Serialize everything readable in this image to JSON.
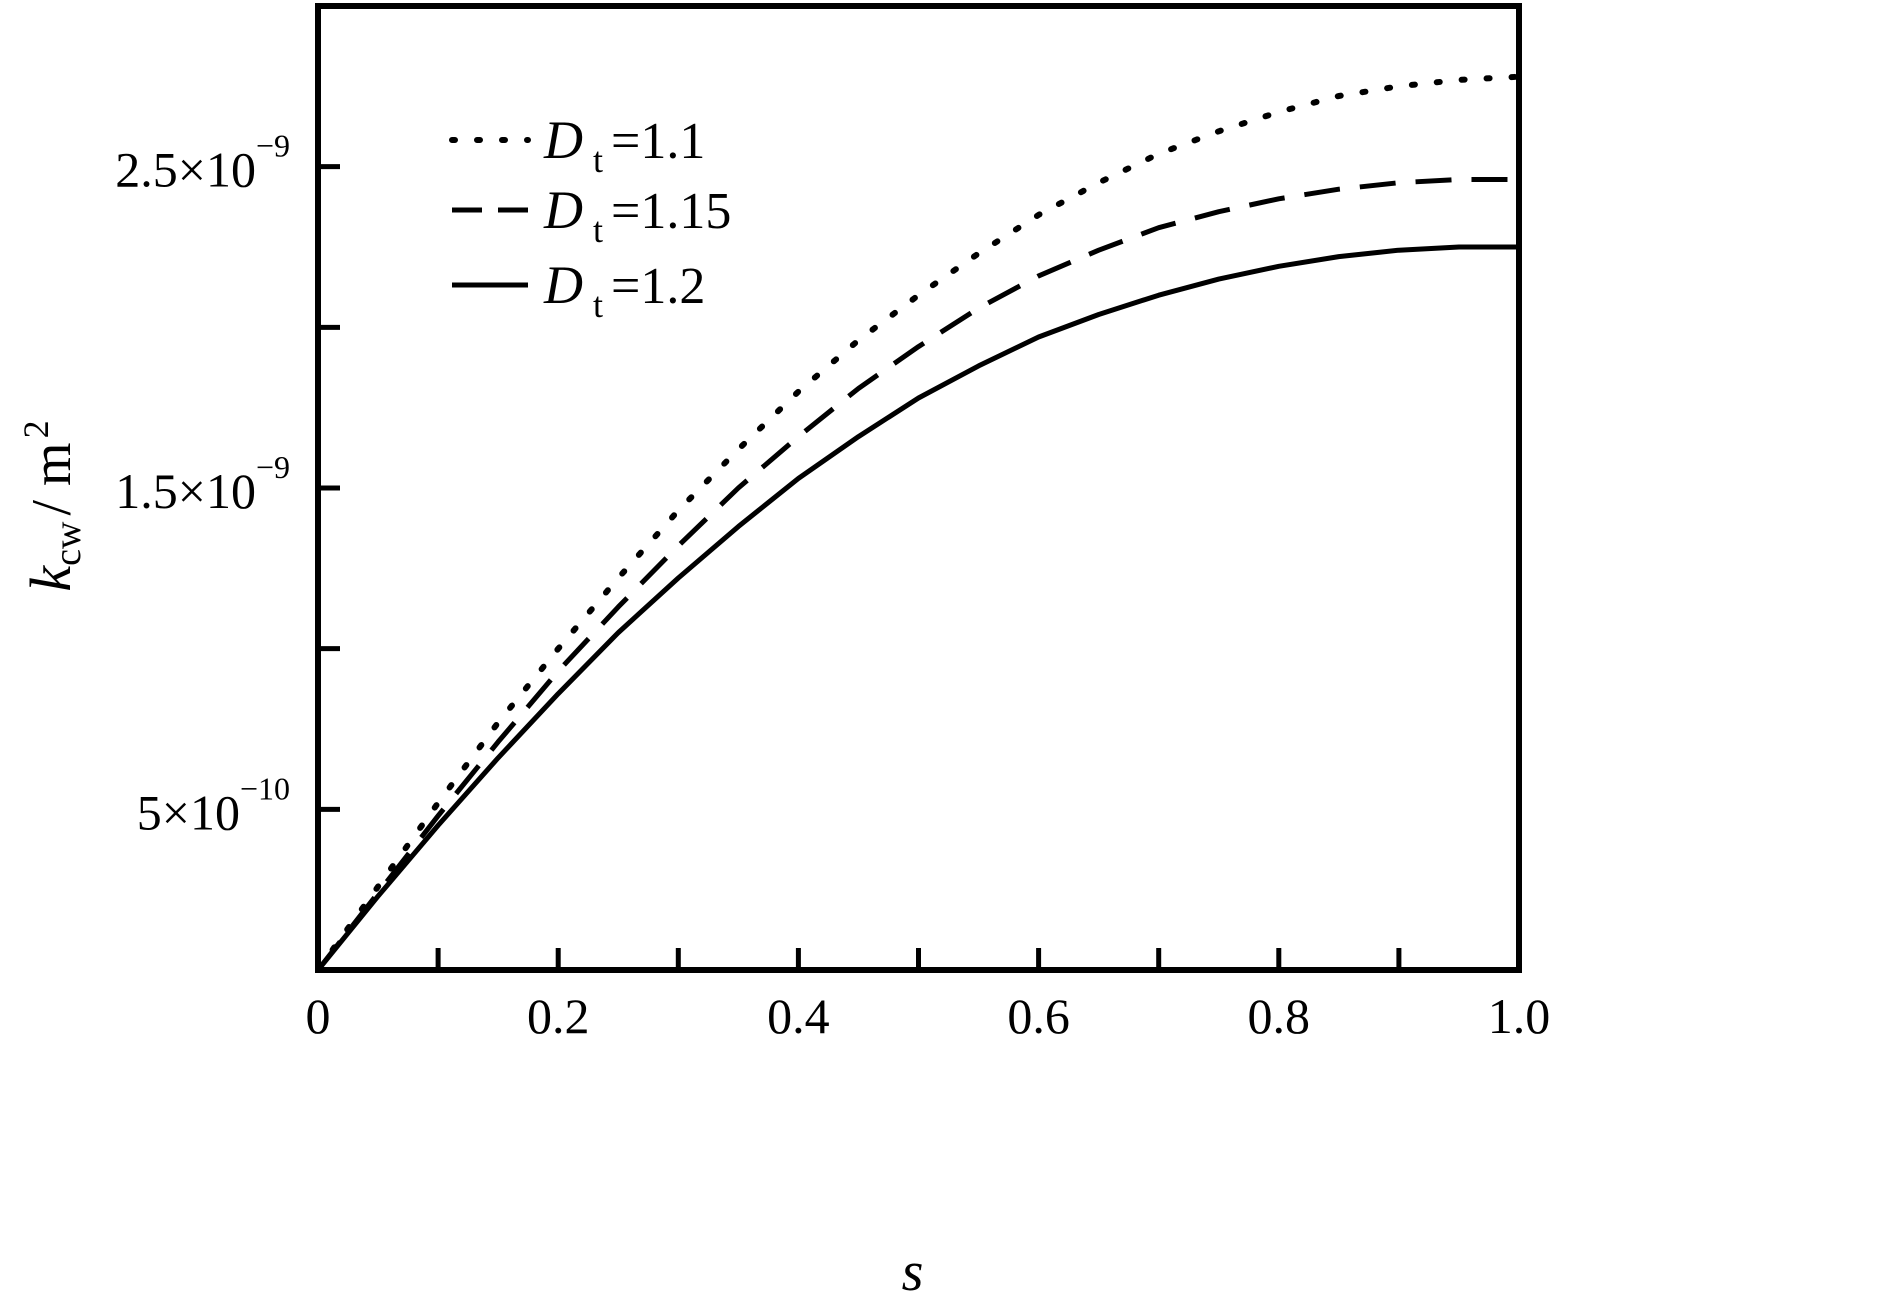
{
  "chart_data": {
    "type": "line",
    "title": "",
    "xlabel": "s",
    "ylabel": {
      "symbol": "k",
      "subscript": "cw",
      "unit": "/ m",
      "unit_exponent": "2"
    },
    "xlim": [
      0,
      1.0
    ],
    "ylim": [
      0,
      3e-09
    ],
    "x_ticks": [
      0,
      0.2,
      0.4,
      0.6,
      0.8,
      1.0
    ],
    "x_tick_labels": [
      "0",
      "0.2",
      "0.4",
      "0.6",
      "0.8",
      "1.0"
    ],
    "y_ticks": [
      5e-10,
      1.5e-09,
      2.5e-09
    ],
    "y_tick_labels": [
      {
        "mantissa": "5×10",
        "exponent": "−10"
      },
      {
        "mantissa": "1.5×10",
        "exponent": "−9"
      },
      {
        "mantissa": "2.5×10",
        "exponent": "−9"
      }
    ],
    "grid": false,
    "legend_position": "top-left",
    "x": [
      0,
      0.05,
      0.1,
      0.15,
      0.2,
      0.25,
      0.3,
      0.35,
      0.4,
      0.45,
      0.5,
      0.55,
      0.6,
      0.65,
      0.7,
      0.75,
      0.8,
      0.85,
      0.9,
      0.95,
      1.0
    ],
    "series": [
      {
        "name": "1.1",
        "legend_symbol": "D",
        "legend_subscript": "t",
        "style": "dotted",
        "values": [
          0,
          2.6e-10,
          5.2e-10,
          7.7e-10,
          1e-09,
          1.22e-09,
          1.43e-09,
          1.62e-09,
          1.8e-09,
          1.96e-09,
          2.1e-09,
          2.23e-09,
          2.35e-09,
          2.45e-09,
          2.54e-09,
          2.61e-09,
          2.67e-09,
          2.72e-09,
          2.75e-09,
          2.77e-09,
          2.78e-09
        ]
      },
      {
        "name": "1.15",
        "legend_symbol": "D",
        "legend_subscript": "t",
        "style": "dashed",
        "values": [
          0,
          2.4e-10,
          4.8e-10,
          7.1e-10,
          9.3e-10,
          1.13e-09,
          1.32e-09,
          1.5e-09,
          1.66e-09,
          1.81e-09,
          1.94e-09,
          2.06e-09,
          2.16e-09,
          2.24e-09,
          2.31e-09,
          2.36e-09,
          2.4e-09,
          2.43e-09,
          2.45e-09,
          2.46e-09,
          2.46e-09
        ]
      },
      {
        "name": "1.2",
        "legend_symbol": "D",
        "legend_subscript": "t",
        "style": "solid",
        "values": [
          0,
          2.3e-10,
          4.5e-10,
          6.6e-10,
          8.6e-10,
          1.05e-09,
          1.22e-09,
          1.38e-09,
          1.53e-09,
          1.66e-09,
          1.78e-09,
          1.88e-09,
          1.97e-09,
          2.04e-09,
          2.1e-09,
          2.15e-09,
          2.19e-09,
          2.22e-09,
          2.24e-09,
          2.25e-09,
          2.25e-09
        ]
      }
    ]
  }
}
